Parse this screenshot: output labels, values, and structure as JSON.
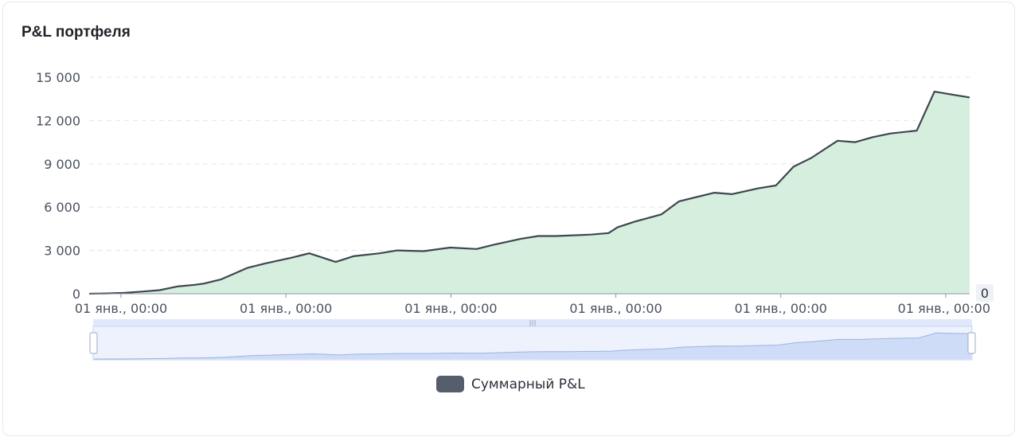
{
  "card": {
    "title": "P&L портфеля"
  },
  "chart_data": {
    "type": "area",
    "title": "P&L портфеля",
    "xlabel": "",
    "ylabel": "",
    "ylim": [
      0,
      15000
    ],
    "y_ticks": [
      0,
      3000,
      6000,
      9000,
      12000,
      15000
    ],
    "y_tick_labels": [
      "0",
      "3 000",
      "6 000",
      "9 000",
      "12 000",
      "15 000"
    ],
    "x_tick_labels": [
      "01 янв., 00:00",
      "01 янв., 00:00",
      "01 янв., 00:00",
      "01 янв., 00:00",
      "01 янв., 00:00",
      "01 янв., 00:00"
    ],
    "grid": true,
    "legend_position": "bottom-center",
    "zoom_slider": {
      "end_value_label": "0"
    },
    "colors": {
      "line": "#3f4650",
      "area_fill": "#d6eedd",
      "legend_swatch": "#565e6b",
      "zoom_fill": "#dbe4fb",
      "zoom_border": "#c5d3f3"
    },
    "series": [
      {
        "name": "Суммарный P&L",
        "x": [
          0,
          2,
          4,
          6,
          8,
          10,
          12,
          13,
          15,
          18,
          20,
          23,
          25,
          28,
          30,
          33,
          35,
          38,
          41,
          44,
          46,
          49,
          51,
          53,
          55,
          57,
          59,
          60,
          62,
          65,
          67,
          69,
          71,
          73,
          76,
          78,
          80,
          82,
          85,
          87,
          89,
          91,
          94,
          96,
          98,
          100
        ],
        "values": [
          0,
          20,
          60,
          150,
          250,
          500,
          620,
          700,
          1000,
          1800,
          2100,
          2500,
          2800,
          2200,
          2600,
          2800,
          3000,
          2950,
          3200,
          3100,
          3400,
          3800,
          4000,
          4000,
          4050,
          4100,
          4200,
          4600,
          5000,
          5500,
          6400,
          6700,
          7000,
          6900,
          7300,
          7500,
          8800,
          9400,
          10600,
          10500,
          10850,
          11100,
          11300,
          14000,
          13800,
          13600
        ]
      }
    ]
  }
}
